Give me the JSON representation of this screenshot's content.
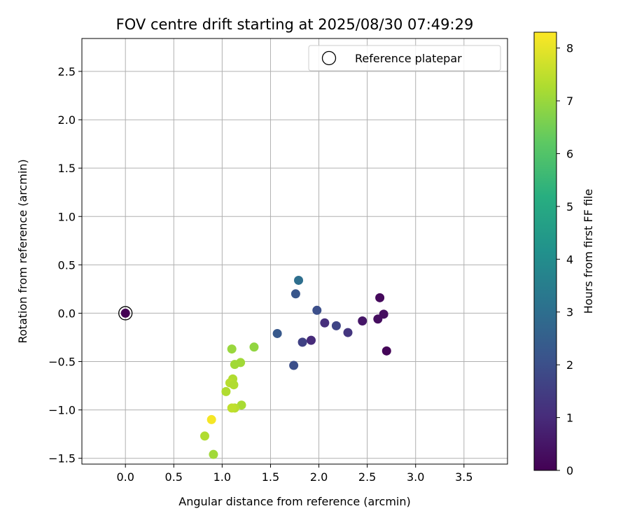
{
  "chart_data": {
    "type": "scatter",
    "title": "FOV centre drift starting at 2025/08/30 07:49:29",
    "xlabel": "Angular distance from reference (arcmin)",
    "ylabel": "Rotation from reference (arcmin)",
    "xlim": [
      -0.45,
      3.95
    ],
    "ylim": [
      -1.56,
      2.84
    ],
    "xticks": [
      0.0,
      0.5,
      1.0,
      1.5,
      2.0,
      2.5,
      3.0,
      3.5
    ],
    "xtick_labels": [
      "0.0",
      "0.5",
      "1.0",
      "1.5",
      "2.0",
      "2.5",
      "3.0",
      "3.5"
    ],
    "yticks": [
      -1.5,
      -1.0,
      -0.5,
      0.0,
      0.5,
      1.0,
      1.5,
      2.0,
      2.5
    ],
    "ytick_labels": [
      "−1.5",
      "−1.0",
      "−0.5",
      "0.0",
      "0.5",
      "1.0",
      "1.5",
      "2.0",
      "2.5"
    ],
    "grid": true,
    "legend": {
      "placement": "top-right",
      "entries": [
        "Reference platepar"
      ]
    },
    "colorbar": {
      "label": "Hours from first FF file",
      "range": [
        0,
        8.3
      ],
      "ticks": [
        0,
        1,
        2,
        3,
        4,
        5,
        6,
        7,
        8
      ],
      "tick_labels": [
        "0",
        "1",
        "2",
        "3",
        "4",
        "5",
        "6",
        "7",
        "8"
      ],
      "colormap": "viridis"
    },
    "reference": {
      "x": 0.0,
      "y": 0.0,
      "name": "Reference platepar"
    },
    "points": [
      {
        "x": 0.0,
        "y": 0.0,
        "h": 0.0
      },
      {
        "x": 2.63,
        "y": 0.16,
        "h": 0.2
      },
      {
        "x": 2.67,
        "y": -0.01,
        "h": 0.3
      },
      {
        "x": 2.61,
        "y": -0.06,
        "h": 0.3
      },
      {
        "x": 2.7,
        "y": -0.39,
        "h": 0.1
      },
      {
        "x": 2.45,
        "y": -0.08,
        "h": 0.5
      },
      {
        "x": 2.3,
        "y": -0.2,
        "h": 1.3
      },
      {
        "x": 2.18,
        "y": -0.13,
        "h": 1.7
      },
      {
        "x": 2.06,
        "y": -0.1,
        "h": 1.1
      },
      {
        "x": 1.98,
        "y": 0.03,
        "h": 2.0
      },
      {
        "x": 1.92,
        "y": -0.28,
        "h": 1.0
      },
      {
        "x": 1.83,
        "y": -0.3,
        "h": 1.6
      },
      {
        "x": 1.76,
        "y": 0.2,
        "h": 2.2
      },
      {
        "x": 1.79,
        "y": 0.34,
        "h": 3.0
      },
      {
        "x": 1.74,
        "y": -0.54,
        "h": 2.0
      },
      {
        "x": 1.57,
        "y": -0.21,
        "h": 2.3
      },
      {
        "x": 1.33,
        "y": -0.35,
        "h": 6.9
      },
      {
        "x": 1.1,
        "y": -0.37,
        "h": 7.0
      },
      {
        "x": 1.19,
        "y": -0.51,
        "h": 7.1
      },
      {
        "x": 1.13,
        "y": -0.53,
        "h": 7.1
      },
      {
        "x": 1.11,
        "y": -0.68,
        "h": 7.3
      },
      {
        "x": 1.08,
        "y": -0.72,
        "h": 7.4
      },
      {
        "x": 1.12,
        "y": -0.74,
        "h": 7.3
      },
      {
        "x": 1.04,
        "y": -0.81,
        "h": 7.3
      },
      {
        "x": 1.2,
        "y": -0.95,
        "h": 7.2
      },
      {
        "x": 1.13,
        "y": -0.98,
        "h": 7.4
      },
      {
        "x": 1.1,
        "y": -0.98,
        "h": 7.5
      },
      {
        "x": 0.89,
        "y": -1.1,
        "h": 8.2
      },
      {
        "x": 0.82,
        "y": -1.27,
        "h": 7.3
      },
      {
        "x": 0.91,
        "y": -1.46,
        "h": 7.1
      }
    ]
  }
}
